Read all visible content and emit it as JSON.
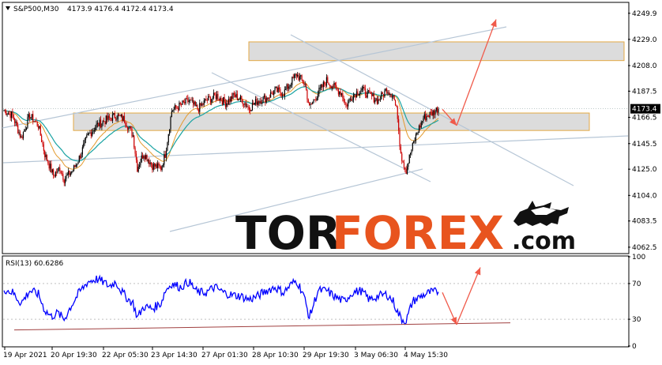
{
  "header": {
    "symbol": "S&P500,M30",
    "ohlc": "4173.9 4176.4 4172.4 4173.4"
  },
  "price_axis": {
    "ticks": [
      "4249.9",
      "4229.0",
      "4208.0",
      "4187.5",
      "4166.5",
      "4145.5",
      "4125.0",
      "4104.0",
      "4083.5",
      "4062.5"
    ],
    "current_price": "4173.4"
  },
  "rsi_panel": {
    "label": "RSI(13) 60.6286",
    "ticks": [
      "100",
      "70",
      "30",
      "0"
    ]
  },
  "time_axis": {
    "labels": [
      "19 Apr 2021",
      "20 Apr 19:30",
      "22 Apr 05:30",
      "23 Apr 14:30",
      "27 Apr 01:30",
      "28 Apr 10:30",
      "29 Apr 19:30",
      "3 May 06:30",
      "4 May 15:30"
    ]
  },
  "watermark": {
    "brand_tor": "TOR",
    "brand_forex": "FOREX",
    "brand_com": ".com"
  },
  "colors": {
    "bull": "#000000",
    "bear": "#cc0000",
    "ma_slow": "#e39a2e",
    "ma_fast": "#1aa3a3",
    "rsi": "#0000ff",
    "arrow": "#f05a4a",
    "channel": "#b6c6d6",
    "zone_fill": "#d9d9d9"
  },
  "chart_data": {
    "type": "candlestick",
    "symbol": "S&P500",
    "timeframe": "M30",
    "last": {
      "open": 4173.9,
      "high": 4176.4,
      "low": 4172.4,
      "close": 4173.4
    },
    "y_range": [
      4058,
      4258
    ],
    "close_anchors": [
      [
        0,
        4172
      ],
      [
        8,
        4168
      ],
      [
        16,
        4150
      ],
      [
        24,
        4168
      ],
      [
        32,
        4160
      ],
      [
        38,
        4137
      ],
      [
        46,
        4120
      ],
      [
        52,
        4126
      ],
      [
        56,
        4117
      ],
      [
        64,
        4124
      ],
      [
        70,
        4134
      ],
      [
        78,
        4152
      ],
      [
        86,
        4160
      ],
      [
        94,
        4164
      ],
      [
        104,
        4168
      ],
      [
        112,
        4165
      ],
      [
        120,
        4152
      ],
      [
        124,
        4126
      ],
      [
        130,
        4138
      ],
      [
        138,
        4128
      ],
      [
        146,
        4126
      ],
      [
        150,
        4137
      ],
      [
        156,
        4172
      ],
      [
        164,
        4176
      ],
      [
        172,
        4180
      ],
      [
        180,
        4173
      ],
      [
        188,
        4180
      ],
      [
        198,
        4184
      ],
      [
        206,
        4178
      ],
      [
        214,
        4184
      ],
      [
        222,
        4180
      ],
      [
        228,
        4174
      ],
      [
        236,
        4180
      ],
      [
        244,
        4182
      ],
      [
        252,
        4188
      ],
      [
        260,
        4186
      ],
      [
        268,
        4196
      ],
      [
        272,
        4201
      ],
      [
        280,
        4193
      ],
      [
        284,
        4174
      ],
      [
        292,
        4186
      ],
      [
        300,
        4196
      ],
      [
        308,
        4190
      ],
      [
        314,
        4186
      ],
      [
        318,
        4176
      ],
      [
        324,
        4184
      ],
      [
        332,
        4189
      ],
      [
        340,
        4184
      ],
      [
        348,
        4180
      ],
      [
        356,
        4189
      ],
      [
        362,
        4184
      ],
      [
        366,
        4168
      ],
      [
        368,
        4146
      ],
      [
        370,
        4134
      ],
      [
        374,
        4124
      ],
      [
        378,
        4138
      ],
      [
        384,
        4154
      ],
      [
        390,
        4166
      ],
      [
        398,
        4170
      ],
      [
        404,
        4174
      ]
    ],
    "support_resistance_zones": [
      {
        "low": 4212,
        "high": 4227
      },
      {
        "low": 4156,
        "high": 4170
      }
    ],
    "forecast_arrows": [
      {
        "from": 4173,
        "to": 4160
      },
      {
        "from": 4160,
        "to": 4245
      }
    ],
    "rsi_anchors": [
      [
        0,
        64
      ],
      [
        8,
        60
      ],
      [
        16,
        48
      ],
      [
        24,
        62
      ],
      [
        32,
        58
      ],
      [
        38,
        40
      ],
      [
        44,
        33
      ],
      [
        50,
        37
      ],
      [
        56,
        30
      ],
      [
        62,
        44
      ],
      [
        70,
        60
      ],
      [
        78,
        72
      ],
      [
        86,
        75
      ],
      [
        92,
        72
      ],
      [
        98,
        67
      ],
      [
        104,
        72
      ],
      [
        110,
        60
      ],
      [
        116,
        52
      ],
      [
        120,
        48
      ],
      [
        124,
        32
      ],
      [
        130,
        44
      ],
      [
        138,
        42
      ],
      [
        146,
        48
      ],
      [
        150,
        62
      ],
      [
        156,
        70
      ],
      [
        164,
        66
      ],
      [
        172,
        72
      ],
      [
        180,
        60
      ],
      [
        188,
        60
      ],
      [
        196,
        66
      ],
      [
        204,
        60
      ],
      [
        212,
        57
      ],
      [
        220,
        56
      ],
      [
        228,
        52
      ],
      [
        236,
        56
      ],
      [
        244,
        62
      ],
      [
        252,
        66
      ],
      [
        260,
        60
      ],
      [
        268,
        70
      ],
      [
        272,
        73
      ],
      [
        278,
        60
      ],
      [
        284,
        32
      ],
      [
        292,
        62
      ],
      [
        300,
        62
      ],
      [
        308,
        55
      ],
      [
        316,
        50
      ],
      [
        324,
        60
      ],
      [
        332,
        62
      ],
      [
        340,
        52
      ],
      [
        348,
        56
      ],
      [
        356,
        58
      ],
      [
        362,
        50
      ],
      [
        366,
        38
      ],
      [
        370,
        30
      ],
      [
        374,
        28
      ],
      [
        380,
        50
      ],
      [
        388,
        56
      ],
      [
        396,
        60
      ],
      [
        404,
        61
      ]
    ],
    "rsi_range": [
      0,
      100
    ],
    "rsi_levels": [
      30,
      70
    ],
    "rsi_trendline": {
      "from": 18,
      "to": 26
    },
    "rsi_arrows": [
      {
        "from": 60,
        "to": 24
      },
      {
        "from": 24,
        "to": 88
      }
    ]
  }
}
